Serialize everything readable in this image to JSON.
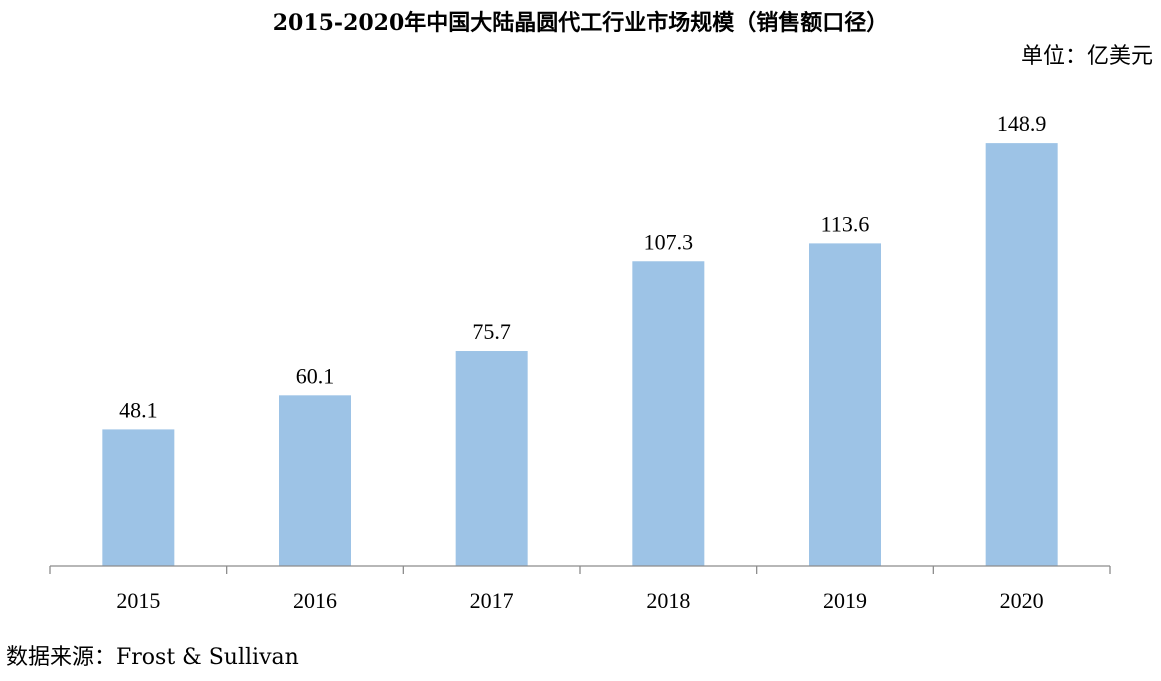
{
  "chart_data": {
    "type": "bar",
    "title": "2015-2020年中国大陆晶圆代工行业市场规模（销售额口径）",
    "unit": "单位：亿美元",
    "categories": [
      "2015",
      "2016",
      "2017",
      "2018",
      "2019",
      "2020"
    ],
    "values": [
      48.1,
      60.1,
      75.7,
      107.3,
      113.6,
      148.9
    ],
    "value_labels": [
      "48.1",
      "60.1",
      "75.7",
      "107.3",
      "113.6",
      "148.9"
    ],
    "xlabel": "",
    "ylabel": "",
    "ylim": [
      0,
      160
    ],
    "grid": false,
    "legend": "none",
    "bar_color": "#9dc3e6",
    "source": "数据来源：Frost & Sullivan"
  }
}
